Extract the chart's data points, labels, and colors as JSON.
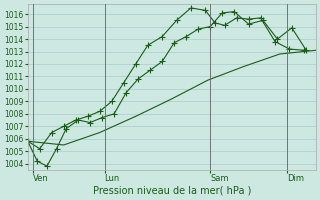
{
  "xlabel": "Pression niveau de la mer( hPa )",
  "background_color": "#cce8e0",
  "grid_color": "#aacccc",
  "line_color": "#1a5c1a",
  "ylim": [
    1003.5,
    1016.8
  ],
  "yticks": [
    1004,
    1005,
    1006,
    1007,
    1008,
    1009,
    1010,
    1011,
    1012,
    1013,
    1014,
    1015,
    1016
  ],
  "xlim": [
    0,
    12.0
  ],
  "x_ven": 0.2,
  "x_lun": 3.2,
  "x_sam": 7.6,
  "x_dim": 10.8,
  "x_day_labels": [
    "Ven",
    "Lun",
    "Sam",
    "Dim"
  ],
  "series1_x": [
    0.0,
    0.4,
    0.8,
    1.2,
    1.6,
    2.1,
    2.6,
    3.1,
    3.6,
    4.1,
    4.6,
    5.1,
    5.6,
    6.1,
    6.6,
    7.1,
    7.6,
    8.1,
    8.6,
    9.2,
    9.8,
    10.4,
    11.0,
    11.6
  ],
  "series1_y": [
    1005.8,
    1004.2,
    1003.8,
    1005.2,
    1006.8,
    1007.5,
    1007.3,
    1007.7,
    1008.0,
    1009.7,
    1010.8,
    1011.5,
    1012.2,
    1013.7,
    1014.2,
    1014.8,
    1015.0,
    1016.1,
    1016.2,
    1015.2,
    1015.5,
    1014.0,
    1014.9,
    1013.1
  ],
  "series2_x": [
    0.0,
    0.5,
    1.0,
    1.5,
    2.0,
    2.5,
    3.0,
    3.5,
    4.0,
    4.5,
    5.0,
    5.6,
    6.2,
    6.8,
    7.4,
    7.8,
    8.2,
    8.7,
    9.2,
    9.7,
    10.3,
    10.9,
    11.5
  ],
  "series2_y": [
    1005.8,
    1005.2,
    1006.5,
    1007.0,
    1007.5,
    1007.8,
    1008.2,
    1009.0,
    1010.5,
    1012.0,
    1013.5,
    1014.2,
    1015.5,
    1016.5,
    1016.3,
    1015.3,
    1015.1,
    1015.7,
    1015.6,
    1015.7,
    1013.8,
    1013.2,
    1013.1
  ],
  "series3_x": [
    0.0,
    1.5,
    3.0,
    4.5,
    6.0,
    7.5,
    9.0,
    10.5,
    12.0
  ],
  "series3_y": [
    1005.8,
    1005.5,
    1006.5,
    1007.8,
    1009.2,
    1010.7,
    1011.8,
    1012.8,
    1013.1
  ],
  "ylabel_fontsize": 6,
  "tick_labelsize": 5.5,
  "xlabel_fontsize": 7
}
